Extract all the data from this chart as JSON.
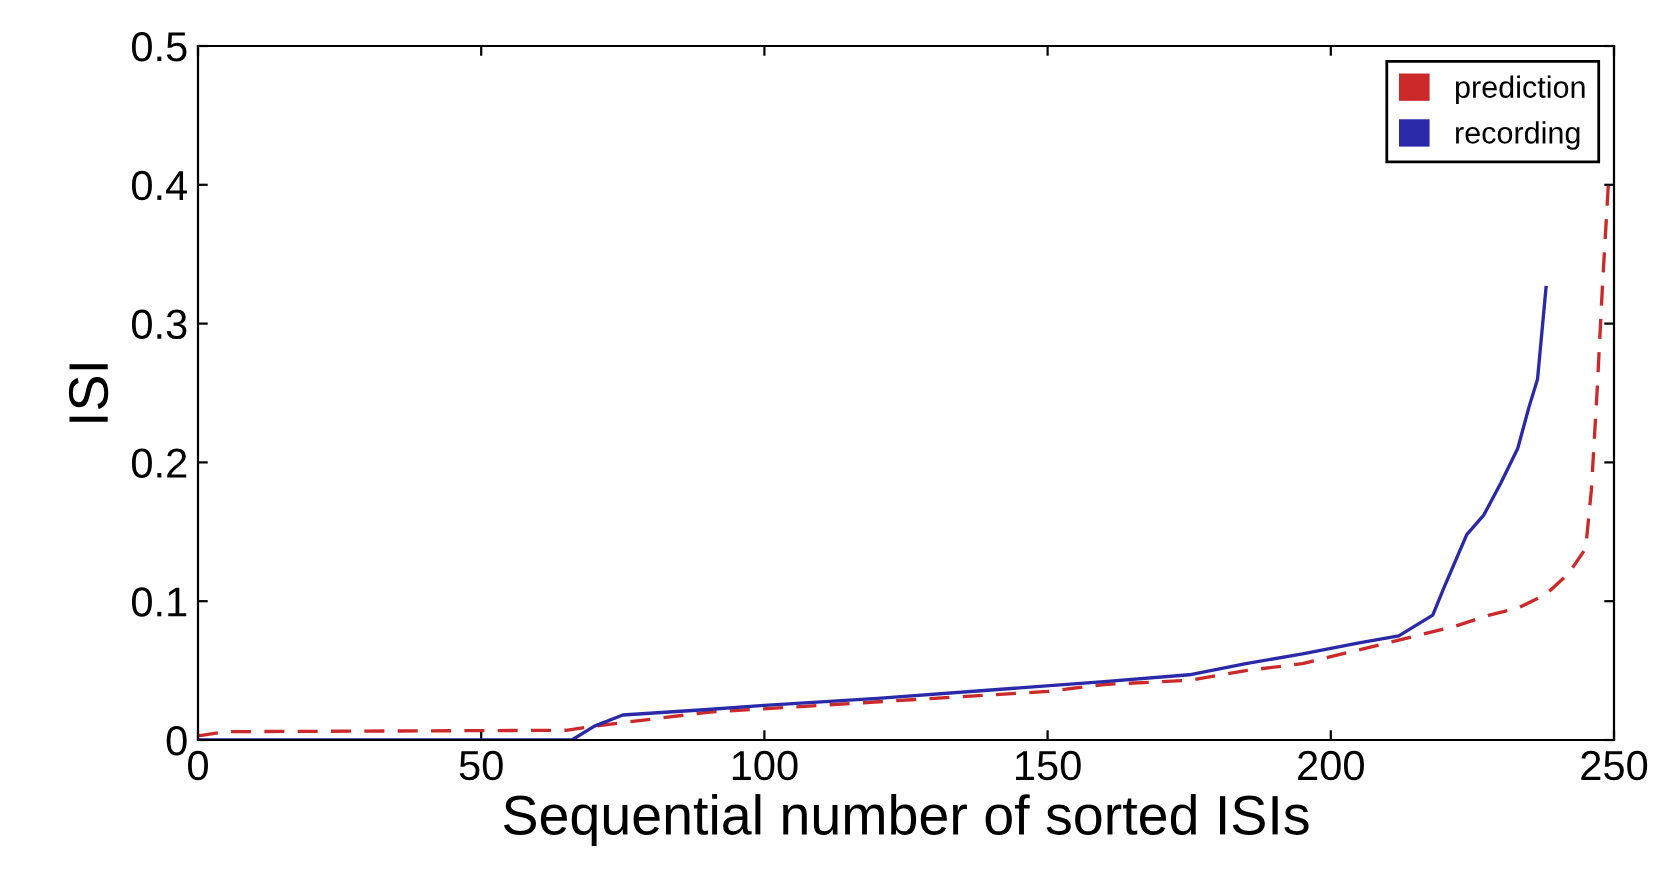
{
  "chart_data": {
    "type": "line",
    "xlabel": "Sequential number of sorted ISIs",
    "ylabel": "ISI",
    "xlim": [
      0,
      250
    ],
    "ylim": [
      0,
      0.5
    ],
    "xticks": [
      0,
      50,
      100,
      150,
      200,
      250
    ],
    "yticks": [
      0,
      0.1,
      0.2,
      0.3,
      0.4,
      0.5
    ],
    "legend": "top right",
    "grid": false,
    "series": [
      {
        "name": "prediction",
        "color": "#cc2a2a",
        "line_style": "dashed",
        "x": [
          0,
          5,
          65,
          70,
          80,
          90,
          110,
          130,
          150,
          160,
          175,
          185,
          195,
          205,
          215,
          222,
          228,
          233,
          238,
          242,
          245,
          246,
          247,
          248,
          249
        ],
        "values": [
          0.003,
          0.006,
          0.007,
          0.01,
          0.015,
          0.02,
          0.025,
          0.03,
          0.035,
          0.04,
          0.043,
          0.05,
          0.055,
          0.065,
          0.075,
          0.082,
          0.09,
          0.095,
          0.105,
          0.12,
          0.138,
          0.18,
          0.25,
          0.33,
          0.4
        ]
      },
      {
        "name": "recording",
        "color": "#2a2aa8",
        "line_style": "solid",
        "x": [
          0,
          66,
          70,
          75,
          90,
          100,
          120,
          140,
          160,
          175,
          185,
          195,
          205,
          212,
          218,
          220,
          224,
          227,
          230,
          233,
          235,
          236.5,
          238
        ],
        "values": [
          0,
          0,
          0.01,
          0.018,
          0.022,
          0.025,
          0.03,
          0.036,
          0.042,
          0.047,
          0.055,
          0.062,
          0.07,
          0.075,
          0.09,
          0.11,
          0.148,
          0.162,
          0.185,
          0.21,
          0.24,
          0.26,
          0.326
        ]
      }
    ]
  }
}
